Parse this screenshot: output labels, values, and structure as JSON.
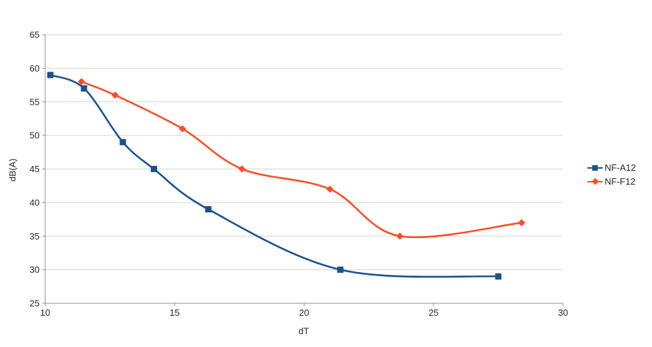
{
  "chart_data": {
    "type": "line",
    "title": "",
    "xlabel": "dT",
    "ylabel": "dB(A)",
    "xlim": [
      10,
      30
    ],
    "ylim": [
      25,
      65
    ],
    "x_ticks": [
      10,
      15,
      20,
      25,
      30
    ],
    "y_ticks": [
      25,
      30,
      35,
      40,
      45,
      50,
      55,
      60,
      65
    ],
    "grid": "horizontal",
    "legend_position": "right",
    "line_style": "smooth",
    "series": [
      {
        "name": "NF-A12",
        "color": "#17538f",
        "marker": "square",
        "points": [
          [
            10.2,
            59
          ],
          [
            11.5,
            57
          ],
          [
            13.0,
            49
          ],
          [
            14.2,
            45
          ],
          [
            16.3,
            39
          ],
          [
            21.4,
            30
          ],
          [
            27.5,
            29
          ]
        ]
      },
      {
        "name": "NF-F12",
        "color": "#f94e22",
        "marker": "diamond",
        "points": [
          [
            11.4,
            58
          ],
          [
            12.7,
            56
          ],
          [
            15.3,
            51
          ],
          [
            17.6,
            45
          ],
          [
            21.0,
            42
          ],
          [
            23.7,
            35
          ],
          [
            28.4,
            37
          ]
        ]
      }
    ]
  },
  "colors": {
    "background": "#ffffff",
    "grid": "#d5d5d5",
    "axis": "#8c8c8c",
    "text": "#262626"
  }
}
